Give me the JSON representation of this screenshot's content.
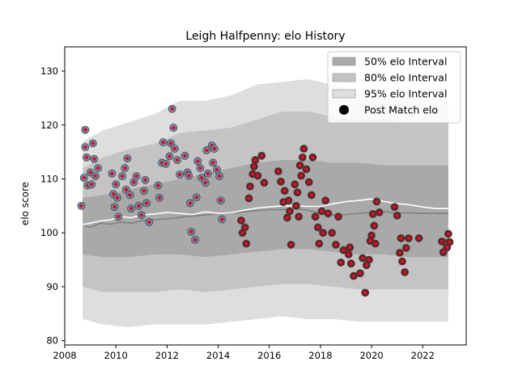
{
  "chart_data": {
    "type": "scatter",
    "title": "Leigh Halfpenny: elo History",
    "ylabel": "elo score",
    "xlabel": "",
    "xlim": [
      2008.0,
      2023.7
    ],
    "ylim": [
      79.2,
      134.5
    ],
    "x_ticks": [
      2008,
      2010,
      2012,
      2014,
      2016,
      2018,
      2020,
      2022
    ],
    "y_ticks": [
      80,
      90,
      100,
      110,
      120,
      130
    ],
    "legend_position": "top-right",
    "legend": [
      "50% elo Interval",
      "80% elo Interval",
      "95% elo Interval",
      "Post Match elo"
    ],
    "colors": {
      "band50": "#a9a9a9",
      "band80": "#c4c4c4",
      "band95": "#dedede",
      "trend_line": "#808080",
      "mean_line": "#ffffff",
      "early_point": "#6f96b4",
      "late_point": "#5e1d1d",
      "point_edge": "#4a4a4a",
      "dot": "#d0142c",
      "legend_marker": "#000000"
    },
    "bands": {
      "x": [
        2008.7,
        2009.5,
        2010.5,
        2011.5,
        2012.5,
        2013.5,
        2014.5,
        2015.5,
        2016.5,
        2017.5,
        2018.5,
        2019.5,
        2020.5,
        2021.5,
        2022.5,
        2023.0
      ],
      "p95_hi": [
        117.0,
        119.0,
        120.5,
        122.0,
        124.5,
        124.5,
        125.5,
        127.5,
        128.0,
        128.5,
        127.5,
        126.0,
        125.5,
        125.0,
        125.0,
        125.0
      ],
      "p80_hi": [
        112.0,
        114.0,
        115.5,
        116.5,
        118.5,
        119.0,
        119.5,
        121.0,
        122.5,
        122.5,
        121.5,
        121.0,
        121.0,
        120.5,
        120.5,
        120.5
      ],
      "p50_hi": [
        106.5,
        107.0,
        108.0,
        109.0,
        110.0,
        111.0,
        112.0,
        113.0,
        113.5,
        113.5,
        113.0,
        113.0,
        112.5,
        112.5,
        112.5,
        112.5
      ],
      "p50_lo": [
        96.0,
        95.5,
        95.5,
        96.0,
        96.0,
        95.5,
        96.0,
        96.5,
        97.0,
        97.0,
        96.5,
        96.0,
        96.0,
        95.5,
        95.5,
        95.5
      ],
      "p80_lo": [
        90.0,
        89.0,
        89.0,
        89.0,
        89.5,
        89.0,
        89.5,
        90.0,
        90.5,
        90.5,
        90.0,
        89.5,
        89.5,
        89.5,
        89.5,
        89.5
      ],
      "p95_lo": [
        84.0,
        83.0,
        82.5,
        83.0,
        83.0,
        83.0,
        83.5,
        84.0,
        84.5,
        84.0,
        84.0,
        83.5,
        83.5,
        83.5,
        83.5,
        83.5
      ]
    },
    "trend_line": {
      "x": [
        2008.7,
        2009.0,
        2009.4,
        2009.8,
        2010.2,
        2010.6,
        2011.0,
        2011.5,
        2012.0,
        2012.5,
        2013.0,
        2013.5,
        2014.0,
        2014.5,
        2015.0,
        2015.5,
        2016.0,
        2016.5,
        2017.0,
        2017.5,
        2018.0,
        2018.5,
        2019.0,
        2019.5,
        2020.0,
        2020.5,
        2021.0,
        2021.5,
        2022.0,
        2022.5,
        2023.0
      ],
      "y": [
        101.5,
        101.0,
        101.8,
        101.6,
        102.0,
        101.8,
        102.2,
        102.4,
        102.6,
        102.9,
        103.1,
        103.3,
        103.5,
        103.6,
        103.9,
        104.1,
        104.3,
        104.3,
        104.5,
        104.2,
        103.6,
        103.3,
        103.4,
        103.6,
        103.8,
        103.9,
        103.7,
        103.7,
        103.6,
        103.6,
        103.6
      ]
    },
    "mean_line": {
      "x": [
        2008.7,
        2009.0,
        2009.4,
        2009.8,
        2010.2,
        2010.6,
        2011.0,
        2011.5,
        2012.0,
        2012.5,
        2013.0,
        2013.5,
        2014.0,
        2014.5,
        2015.0,
        2015.5,
        2016.0,
        2016.5,
        2017.0,
        2017.5,
        2018.0,
        2018.5,
        2019.0,
        2019.5,
        2020.0,
        2020.5,
        2021.0,
        2021.5,
        2022.0,
        2022.5,
        2023.0
      ],
      "y": [
        101.5,
        101.8,
        102.2,
        102.4,
        103.0,
        102.8,
        103.3,
        103.5,
        103.8,
        103.6,
        103.4,
        103.9,
        103.6,
        103.7,
        104.2,
        104.6,
        104.8,
        105.0,
        105.0,
        104.9,
        104.9,
        105.4,
        105.8,
        106.0,
        106.3,
        105.8,
        105.4,
        105.2,
        104.8,
        104.5,
        104.5
      ]
    },
    "points": [
      {
        "x": 2008.65,
        "y": 105.0,
        "era": "early"
      },
      {
        "x": 2008.75,
        "y": 110.2,
        "era": "early"
      },
      {
        "x": 2008.8,
        "y": 115.9,
        "era": "early"
      },
      {
        "x": 2008.8,
        "y": 119.1,
        "era": "early"
      },
      {
        "x": 2008.85,
        "y": 114.0,
        "era": "early"
      },
      {
        "x": 2008.9,
        "y": 108.8,
        "era": "early"
      },
      {
        "x": 2009.0,
        "y": 111.2,
        "era": "early"
      },
      {
        "x": 2009.05,
        "y": 109.0,
        "era": "early"
      },
      {
        "x": 2009.1,
        "y": 116.6,
        "era": "early"
      },
      {
        "x": 2009.15,
        "y": 113.7,
        "era": "early"
      },
      {
        "x": 2009.2,
        "y": 110.5,
        "era": "early"
      },
      {
        "x": 2009.3,
        "y": 112.0,
        "era": "early"
      },
      {
        "x": 2009.85,
        "y": 111.0,
        "era": "early"
      },
      {
        "x": 2009.9,
        "y": 107.2,
        "era": "early"
      },
      {
        "x": 2009.95,
        "y": 104.8,
        "era": "early"
      },
      {
        "x": 2010.0,
        "y": 109.0,
        "era": "early"
      },
      {
        "x": 2010.05,
        "y": 106.5,
        "era": "early"
      },
      {
        "x": 2010.1,
        "y": 103.0,
        "era": "early"
      },
      {
        "x": 2010.25,
        "y": 110.5,
        "era": "early"
      },
      {
        "x": 2010.35,
        "y": 112.0,
        "era": "early"
      },
      {
        "x": 2010.4,
        "y": 108.0,
        "era": "early"
      },
      {
        "x": 2010.45,
        "y": 113.8,
        "era": "early"
      },
      {
        "x": 2010.55,
        "y": 107.0,
        "era": "early"
      },
      {
        "x": 2010.6,
        "y": 104.5,
        "era": "early"
      },
      {
        "x": 2010.7,
        "y": 109.4,
        "era": "early"
      },
      {
        "x": 2010.8,
        "y": 110.5,
        "era": "early"
      },
      {
        "x": 2010.9,
        "y": 105.0,
        "era": "early"
      },
      {
        "x": 2011.0,
        "y": 103.3,
        "era": "early"
      },
      {
        "x": 2011.1,
        "y": 107.8,
        "era": "early"
      },
      {
        "x": 2011.15,
        "y": 109.8,
        "era": "early"
      },
      {
        "x": 2011.2,
        "y": 105.5,
        "era": "early"
      },
      {
        "x": 2011.3,
        "y": 102.0,
        "era": "early"
      },
      {
        "x": 2011.65,
        "y": 108.8,
        "era": "early"
      },
      {
        "x": 2011.7,
        "y": 106.5,
        "era": "early"
      },
      {
        "x": 2011.8,
        "y": 113.0,
        "era": "early"
      },
      {
        "x": 2011.85,
        "y": 116.8,
        "era": "early"
      },
      {
        "x": 2011.95,
        "y": 112.8,
        "era": "early"
      },
      {
        "x": 2012.1,
        "y": 114.2,
        "era": "early"
      },
      {
        "x": 2012.15,
        "y": 116.6,
        "era": "early"
      },
      {
        "x": 2012.2,
        "y": 123.0,
        "era": "early"
      },
      {
        "x": 2012.25,
        "y": 119.5,
        "era": "early"
      },
      {
        "x": 2012.3,
        "y": 115.6,
        "era": "early"
      },
      {
        "x": 2012.4,
        "y": 113.5,
        "era": "early"
      },
      {
        "x": 2012.5,
        "y": 110.8,
        "era": "early"
      },
      {
        "x": 2012.7,
        "y": 114.3,
        "era": "early"
      },
      {
        "x": 2012.8,
        "y": 111.2,
        "era": "early"
      },
      {
        "x": 2012.85,
        "y": 110.6,
        "era": "early"
      },
      {
        "x": 2012.9,
        "y": 105.5,
        "era": "early"
      },
      {
        "x": 2012.95,
        "y": 100.2,
        "era": "early"
      },
      {
        "x": 2013.1,
        "y": 98.7,
        "era": "early"
      },
      {
        "x": 2013.15,
        "y": 106.6,
        "era": "early"
      },
      {
        "x": 2013.2,
        "y": 113.3,
        "era": "early"
      },
      {
        "x": 2013.3,
        "y": 112.0,
        "era": "early"
      },
      {
        "x": 2013.35,
        "y": 110.2,
        "era": "early"
      },
      {
        "x": 2013.5,
        "y": 109.3,
        "era": "early"
      },
      {
        "x": 2013.55,
        "y": 115.3,
        "era": "early"
      },
      {
        "x": 2013.6,
        "y": 111.0,
        "era": "early"
      },
      {
        "x": 2013.75,
        "y": 116.2,
        "era": "early"
      },
      {
        "x": 2013.8,
        "y": 113.0,
        "era": "early"
      },
      {
        "x": 2013.85,
        "y": 115.6,
        "era": "early"
      },
      {
        "x": 2013.95,
        "y": 111.7,
        "era": "early"
      },
      {
        "x": 2014.05,
        "y": 110.5,
        "era": "early"
      },
      {
        "x": 2014.1,
        "y": 106.0,
        "era": "early"
      },
      {
        "x": 2014.15,
        "y": 102.5,
        "era": "early"
      },
      {
        "x": 2014.9,
        "y": 102.3,
        "era": "late"
      },
      {
        "x": 2014.95,
        "y": 100.0,
        "era": "late"
      },
      {
        "x": 2015.05,
        "y": 101.0,
        "era": "late"
      },
      {
        "x": 2015.1,
        "y": 98.0,
        "era": "late"
      },
      {
        "x": 2015.2,
        "y": 106.4,
        "era": "late"
      },
      {
        "x": 2015.25,
        "y": 108.6,
        "era": "late"
      },
      {
        "x": 2015.35,
        "y": 110.9,
        "era": "late"
      },
      {
        "x": 2015.4,
        "y": 112.3,
        "era": "late"
      },
      {
        "x": 2015.45,
        "y": 113.5,
        "era": "late"
      },
      {
        "x": 2015.55,
        "y": 110.6,
        "era": "late"
      },
      {
        "x": 2015.7,
        "y": 114.3,
        "era": "late"
      },
      {
        "x": 2015.8,
        "y": 109.3,
        "era": "late"
      },
      {
        "x": 2016.35,
        "y": 111.4,
        "era": "late"
      },
      {
        "x": 2016.45,
        "y": 109.5,
        "era": "late"
      },
      {
        "x": 2016.55,
        "y": 105.7,
        "era": "late"
      },
      {
        "x": 2016.6,
        "y": 107.8,
        "era": "late"
      },
      {
        "x": 2016.7,
        "y": 102.8,
        "era": "late"
      },
      {
        "x": 2016.75,
        "y": 106.0,
        "era": "late"
      },
      {
        "x": 2016.8,
        "y": 104.0,
        "era": "late"
      },
      {
        "x": 2016.85,
        "y": 97.8,
        "era": "late"
      },
      {
        "x": 2017.0,
        "y": 109.0,
        "era": "late"
      },
      {
        "x": 2017.05,
        "y": 105.0,
        "era": "late"
      },
      {
        "x": 2017.1,
        "y": 107.5,
        "era": "late"
      },
      {
        "x": 2017.15,
        "y": 103.0,
        "era": "late"
      },
      {
        "x": 2017.2,
        "y": 112.5,
        "era": "late"
      },
      {
        "x": 2017.25,
        "y": 110.6,
        "era": "late"
      },
      {
        "x": 2017.3,
        "y": 114.0,
        "era": "late"
      },
      {
        "x": 2017.35,
        "y": 115.6,
        "era": "late"
      },
      {
        "x": 2017.45,
        "y": 111.8,
        "era": "late"
      },
      {
        "x": 2017.55,
        "y": 109.4,
        "era": "late"
      },
      {
        "x": 2017.65,
        "y": 107.0,
        "era": "late"
      },
      {
        "x": 2017.7,
        "y": 114.0,
        "era": "late"
      },
      {
        "x": 2017.8,
        "y": 103.0,
        "era": "late"
      },
      {
        "x": 2017.9,
        "y": 101.0,
        "era": "late"
      },
      {
        "x": 2017.95,
        "y": 98.0,
        "era": "late"
      },
      {
        "x": 2018.05,
        "y": 104.0,
        "era": "late"
      },
      {
        "x": 2018.1,
        "y": 100.0,
        "era": "late"
      },
      {
        "x": 2018.2,
        "y": 106.0,
        "era": "late"
      },
      {
        "x": 2018.3,
        "y": 103.6,
        "era": "late"
      },
      {
        "x": 2018.45,
        "y": 100.0,
        "era": "late"
      },
      {
        "x": 2018.6,
        "y": 97.8,
        "era": "late"
      },
      {
        "x": 2018.7,
        "y": 103.0,
        "era": "late"
      },
      {
        "x": 2018.8,
        "y": 94.5,
        "era": "late"
      },
      {
        "x": 2018.9,
        "y": 96.8,
        "era": "late"
      },
      {
        "x": 2019.1,
        "y": 96.0,
        "era": "late"
      },
      {
        "x": 2019.15,
        "y": 97.3,
        "era": "late"
      },
      {
        "x": 2019.2,
        "y": 94.3,
        "era": "late"
      },
      {
        "x": 2019.3,
        "y": 92.0,
        "era": "late"
      },
      {
        "x": 2019.55,
        "y": 92.5,
        "era": "late"
      },
      {
        "x": 2019.65,
        "y": 95.3,
        "era": "late"
      },
      {
        "x": 2019.75,
        "y": 88.9,
        "era": "late"
      },
      {
        "x": 2019.8,
        "y": 94.0,
        "era": "late"
      },
      {
        "x": 2019.9,
        "y": 95.0,
        "era": "late"
      },
      {
        "x": 2019.95,
        "y": 98.5,
        "era": "late"
      },
      {
        "x": 2020.0,
        "y": 99.5,
        "era": "late"
      },
      {
        "x": 2020.05,
        "y": 103.5,
        "era": "late"
      },
      {
        "x": 2020.1,
        "y": 101.3,
        "era": "late"
      },
      {
        "x": 2020.15,
        "y": 98.0,
        "era": "late"
      },
      {
        "x": 2020.2,
        "y": 105.8,
        "era": "late"
      },
      {
        "x": 2020.3,
        "y": 103.8,
        "era": "late"
      },
      {
        "x": 2020.9,
        "y": 104.8,
        "era": "late"
      },
      {
        "x": 2021.0,
        "y": 103.2,
        "era": "late"
      },
      {
        "x": 2021.1,
        "y": 96.3,
        "era": "late"
      },
      {
        "x": 2021.15,
        "y": 99.0,
        "era": "late"
      },
      {
        "x": 2021.2,
        "y": 94.7,
        "era": "late"
      },
      {
        "x": 2021.3,
        "y": 92.7,
        "era": "late"
      },
      {
        "x": 2021.35,
        "y": 97.2,
        "era": "late"
      },
      {
        "x": 2021.45,
        "y": 99.0,
        "era": "late"
      },
      {
        "x": 2021.85,
        "y": 99.0,
        "era": "late"
      },
      {
        "x": 2022.75,
        "y": 98.4,
        "era": "late"
      },
      {
        "x": 2022.8,
        "y": 96.4,
        "era": "late"
      },
      {
        "x": 2022.9,
        "y": 98.1,
        "era": "late"
      },
      {
        "x": 2022.95,
        "y": 97.3,
        "era": "late"
      },
      {
        "x": 2023.0,
        "y": 99.8,
        "era": "late"
      },
      {
        "x": 2023.05,
        "y": 98.3,
        "era": "late"
      }
    ]
  }
}
